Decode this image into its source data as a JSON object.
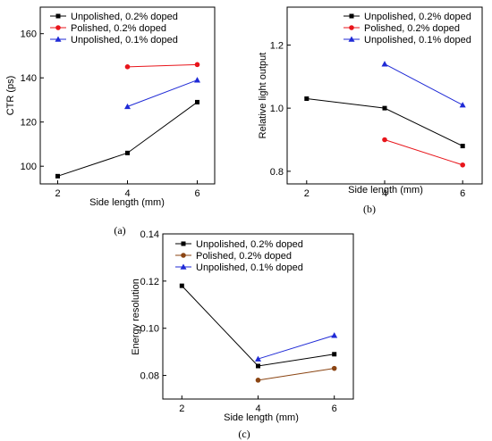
{
  "chart_data": [
    {
      "type": "line",
      "panel_label": "(a)",
      "xlabel": "Side length  (mm)",
      "ylabel": "CTR (ps)",
      "xlim": [
        1.5,
        6.5
      ],
      "ylim": [
        92,
        172
      ],
      "xticks": [
        2,
        4,
        6
      ],
      "yticks": [
        100,
        120,
        140,
        160
      ],
      "legend": "top-left",
      "series": [
        {
          "name": "Unpolished, 0.2% doped",
          "color": "#000000",
          "marker": "square",
          "x": [
            2,
            4,
            6
          ],
          "y": [
            95.5,
            106,
            129
          ]
        },
        {
          "name": "Polished, 0.2% doped",
          "color": "#e8151b",
          "marker": "circle",
          "x": [
            4,
            6
          ],
          "y": [
            145,
            146
          ]
        },
        {
          "name": "Unpolished, 0.1% doped",
          "color": "#1f2ad6",
          "marker": "triangle",
          "x": [
            4,
            6
          ],
          "y": [
            127,
            139
          ]
        }
      ]
    },
    {
      "type": "line",
      "panel_label": "(b)",
      "xlabel": "Side length (mm)",
      "ylabel": "Relative light output",
      "xlim": [
        1.5,
        6.5
      ],
      "ylim": [
        0.76,
        1.32
      ],
      "xticks": [
        2,
        4,
        6
      ],
      "yticks": [
        "0.8",
        "1.0",
        "1.2"
      ],
      "legend": "top-right",
      "series": [
        {
          "name": "Unpolished, 0.2% doped",
          "color": "#000000",
          "marker": "square",
          "x": [
            2,
            4,
            6
          ],
          "y": [
            1.03,
            1.0,
            0.88
          ]
        },
        {
          "name": "Polished, 0.2% doped",
          "color": "#e8151b",
          "marker": "circle",
          "x": [
            4,
            6
          ],
          "y": [
            0.9,
            0.82
          ]
        },
        {
          "name": "Unpolished, 0.1% doped",
          "color": "#1f2ad6",
          "marker": "triangle",
          "x": [
            4,
            6
          ],
          "y": [
            1.14,
            1.01
          ]
        }
      ]
    },
    {
      "type": "line",
      "panel_label": "(c)",
      "xlabel": "Side length (mm)",
      "ylabel": "Energy resolution",
      "xlim": [
        1.5,
        6.5
      ],
      "ylim": [
        0.07,
        0.14
      ],
      "xticks": [
        2,
        4,
        6
      ],
      "yticks": [
        "0.08",
        "0.10",
        "0.12",
        "0.14"
      ],
      "legend": "top-right",
      "series": [
        {
          "name": "Unpolished, 0.2% doped",
          "color": "#000000",
          "marker": "square",
          "x": [
            2,
            4,
            6
          ],
          "y": [
            0.118,
            0.084,
            0.089
          ]
        },
        {
          "name": "Polished, 0.2% doped",
          "color": "#8b4513",
          "marker": "circle",
          "x": [
            4,
            6
          ],
          "y": [
            0.078,
            0.083
          ]
        },
        {
          "name": "Unpolished, 0.1% doped",
          "color": "#1f2ad6",
          "marker": "triangle",
          "x": [
            4,
            6
          ],
          "y": [
            0.087,
            0.097
          ]
        }
      ]
    }
  ]
}
